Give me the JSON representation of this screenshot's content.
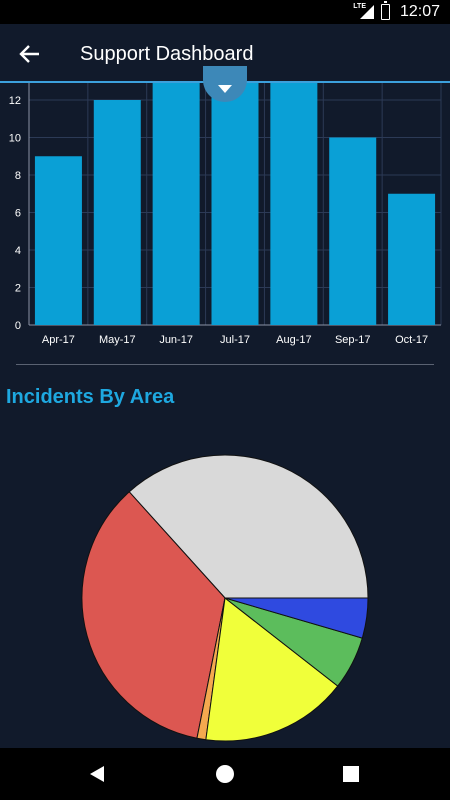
{
  "status_bar": {
    "time": "12:07",
    "network": "LTE"
  },
  "app_bar": {
    "title": "Support Dashboard",
    "back_icon": "arrow-back-icon"
  },
  "chart_data": [
    {
      "type": "bar",
      "categories": [
        "Apr-17",
        "May-17",
        "Jun-17",
        "Jul-17",
        "Aug-17",
        "Sep-17",
        "Oct-17"
      ],
      "values": [
        9,
        12,
        13,
        13,
        13,
        10,
        7
      ],
      "yticks": [
        0,
        2,
        4,
        6,
        8,
        10,
        12
      ],
      "ylim": [
        0,
        13
      ],
      "grid": true,
      "bar_color": "#0aa0d6"
    },
    {
      "type": "pie",
      "title": "Incidents By Area",
      "slices": [
        {
          "value": 36.5,
          "color": "#d9d9d9"
        },
        {
          "value": 35.0,
          "color": "#dc5751"
        },
        {
          "value": 1.0,
          "color": "#f4a94f"
        },
        {
          "value": 16.5,
          "color": "#f0ff3a"
        },
        {
          "value": 6.0,
          "color": "#5cbd5c"
        },
        {
          "value": 4.5,
          "color": "#2f4ae0"
        }
      ]
    }
  ],
  "colors": {
    "background": "#111a2b",
    "accent": "#3ca0dc",
    "section_title": "#1ea8e0",
    "grid": "#2c3a56",
    "axis_text": "#ffffff"
  },
  "nav_bar": {
    "back_icon": "nav-back-icon",
    "home_icon": "nav-home-icon",
    "recents_icon": "nav-recents-icon"
  }
}
